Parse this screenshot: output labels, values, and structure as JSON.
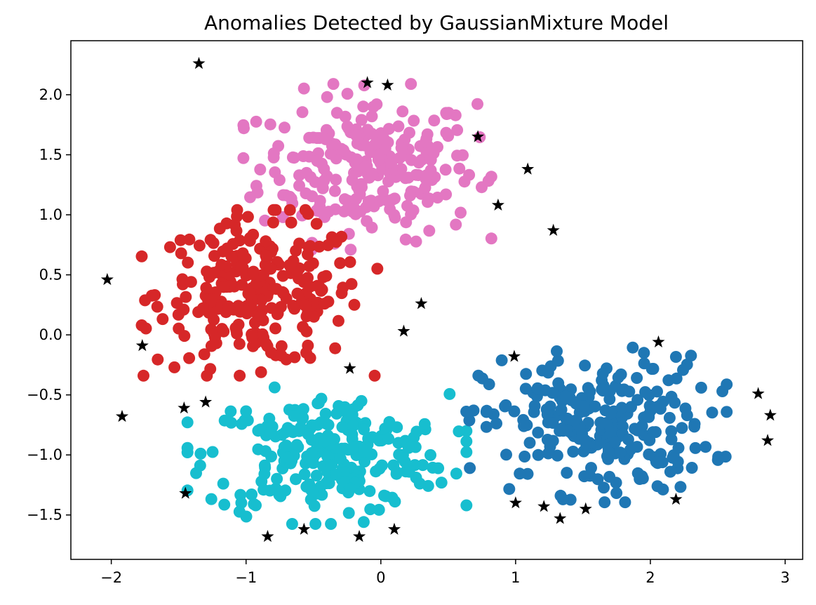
{
  "chart_data": {
    "type": "scatter",
    "title": "Anomalies Detected by GaussianMixture Model",
    "xlabel": "",
    "ylabel": "",
    "xlim": [
      -2.3,
      3.13
    ],
    "ylim": [
      -1.87,
      2.45
    ],
    "xticks": [
      -2,
      -1,
      0,
      1,
      2,
      3
    ],
    "yticks": [
      -1.5,
      -1.0,
      -0.5,
      0.0,
      0.5,
      1.0,
      1.5,
      2.0
    ],
    "xtick_labels": [
      "−2",
      "−1",
      "0",
      "1",
      "2",
      "3"
    ],
    "ytick_labels": [
      "−1.5",
      "−1.0",
      "−0.5",
      "0.0",
      "0.5",
      "1.0",
      "1.5",
      "2.0"
    ],
    "grid": false,
    "legend": "none",
    "clusters": [
      {
        "color": "#e377c2",
        "center": [
          -0.1,
          1.4
        ],
        "spread": [
          0.4,
          0.3
        ],
        "count": 250
      },
      {
        "color": "#d62728",
        "center": [
          -0.9,
          0.35
        ],
        "spread": [
          0.38,
          0.3
        ],
        "count": 250
      },
      {
        "color": "#17becf",
        "center": [
          -0.4,
          -1.0
        ],
        "spread": [
          0.45,
          0.25
        ],
        "count": 250
      },
      {
        "color": "#1f77b4",
        "center": [
          1.6,
          -0.75
        ],
        "spread": [
          0.42,
          0.28
        ],
        "count": 250
      }
    ],
    "anomalies": {
      "color": "#000000",
      "marker": "star",
      "points": [
        [
          -1.35,
          2.26
        ],
        [
          -0.1,
          2.1
        ],
        [
          0.05,
          2.08
        ],
        [
          0.72,
          1.65
        ],
        [
          1.09,
          1.38
        ],
        [
          0.87,
          1.08
        ],
        [
          1.28,
          0.87
        ],
        [
          -2.03,
          0.46
        ],
        [
          0.3,
          0.26
        ],
        [
          -1.77,
          -0.09
        ],
        [
          0.17,
          0.03
        ],
        [
          -0.23,
          -0.28
        ],
        [
          0.99,
          -0.18
        ],
        [
          2.06,
          -0.06
        ],
        [
          -1.92,
          -0.68
        ],
        [
          -1.46,
          -0.61
        ],
        [
          -1.3,
          -0.56
        ],
        [
          2.8,
          -0.49
        ],
        [
          2.89,
          -0.67
        ],
        [
          2.87,
          -0.88
        ],
        [
          -1.45,
          -1.32
        ],
        [
          2.19,
          -1.37
        ],
        [
          1.0,
          -1.4
        ],
        [
          1.21,
          -1.43
        ],
        [
          1.52,
          -1.45
        ],
        [
          1.33,
          -1.53
        ],
        [
          -0.57,
          -1.62
        ],
        [
          0.1,
          -1.62
        ],
        [
          -0.84,
          -1.68
        ],
        [
          -0.16,
          -1.68
        ]
      ]
    }
  }
}
